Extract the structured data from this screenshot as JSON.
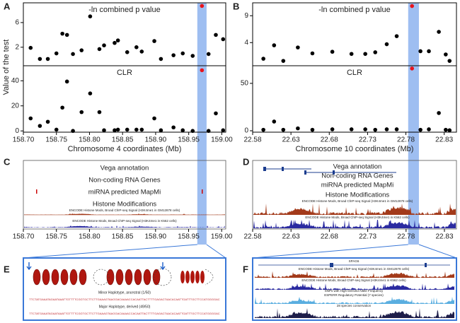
{
  "chart_data": [
    {
      "type": "scatter",
      "panel_label": "A",
      "title": "-ln combined p value",
      "y_label": "Value of the test",
      "x": [
        158.711,
        158.725,
        158.737,
        158.75,
        158.759,
        158.766,
        158.775,
        158.788,
        158.801,
        158.815,
        158.822,
        158.838,
        158.843,
        158.857,
        158.871,
        158.879,
        158.898,
        158.908,
        158.927,
        158.941,
        158.956,
        158.97,
        158.98,
        158.991,
        159.002
      ],
      "values": [
        1.9,
        0.1,
        0.1,
        1.0,
        4.2,
        4.0,
        0.9,
        1.5,
        7.0,
        1.7,
        2.3,
        2.7,
        3.1,
        1.2,
        2.0,
        1.3,
        3.0,
        0.1,
        0.7,
        1.0,
        0.6,
        8.7,
        0.9,
        4.0,
        3.3
      ],
      "color": "#000000",
      "highlight_index": 21,
      "highlight_color": "#e8141c",
      "band": [
        158.963,
        158.977
      ],
      "band_color": "#8db3ee",
      "xlim": [
        158.7,
        159.006
      ],
      "ylim": [
        -1,
        9.2
      ],
      "yticks": [
        2,
        6
      ]
    },
    {
      "type": "scatter",
      "title": "CLR",
      "x_label": "Chromosome 4 coordinates (Mb)",
      "x": [
        158.711,
        158.725,
        158.737,
        158.75,
        158.759,
        158.766,
        158.775,
        158.788,
        158.801,
        158.815,
        158.822,
        158.838,
        158.843,
        158.857,
        158.871,
        158.879,
        158.898,
        158.908,
        158.927,
        158.941,
        158.956,
        158.97,
        158.98,
        158.991,
        159.002
      ],
      "values": [
        10,
        4,
        7.3,
        1,
        18.6,
        39.4,
        0,
        15,
        29.9,
        15,
        0.5,
        0.5,
        1,
        1,
        1,
        1,
        10,
        0.5,
        2.8,
        0.5,
        0,
        48.4,
        0,
        14,
        0.5
      ],
      "color": "#000000",
      "highlight_index": 21,
      "highlight_color": "#e8141c",
      "band": [
        158.963,
        158.977
      ],
      "band_color": "#8db3ee",
      "xlim": [
        158.7,
        159.006
      ],
      "ylim": [
        -1,
        52
      ],
      "yticks": [
        0,
        20,
        40
      ],
      "xticks": [
        {
          "value": 158.7,
          "label": "158.70"
        },
        {
          "value": 158.75,
          "label": "158.75"
        },
        {
          "value": 158.8,
          "label": "158.80"
        },
        {
          "value": 158.85,
          "label": "158.85"
        },
        {
          "value": 158.9,
          "label": "158.90"
        },
        {
          "value": 158.95,
          "label": "158.95"
        },
        {
          "value": 159,
          "label": "159.00"
        }
      ]
    },
    {
      "type": "scatter",
      "panel_label": "B",
      "title": "-ln combined p value",
      "x": [
        22.594,
        22.608,
        22.62,
        22.639,
        22.658,
        22.684,
        22.709,
        22.727,
        22.74,
        22.755,
        22.768,
        22.788,
        22.799,
        22.81,
        22.823,
        22.832,
        22.837
      ],
      "values": [
        1.0,
        3.5,
        0.6,
        3.1,
        2.0,
        2.3,
        1.9,
        1.9,
        2.2,
        3.7,
        5.2,
        10.8,
        2.4,
        2.4,
        6.0,
        1.8,
        0.6
      ],
      "color": "#000000",
      "highlight_index": 11,
      "highlight_color": "#e8141c",
      "band": [
        22.783,
        22.797
      ],
      "band_color": "#8db3ee",
      "xlim": [
        22.58,
        22.846
      ],
      "ylim": [
        -0.3,
        11.4
      ],
      "yticks": [
        4,
        9
      ]
    },
    {
      "type": "scatter",
      "title": "CLR",
      "x_label": "Chromosome 10 coordinates (Mb)",
      "x": [
        22.594,
        22.608,
        22.62,
        22.639,
        22.658,
        22.684,
        22.709,
        22.727,
        22.74,
        22.755,
        22.768,
        22.788,
        22.799,
        22.81,
        22.823,
        22.832,
        22.837
      ],
      "values": [
        1,
        9.7,
        1,
        2.5,
        1,
        1.5,
        1.5,
        1.5,
        1,
        1.5,
        1.5,
        65.7,
        1,
        1.5,
        18.7,
        1,
        0.5
      ],
      "color": "#000000",
      "highlight_index": 11,
      "highlight_color": "#e8141c",
      "band": [
        22.783,
        22.797
      ],
      "band_color": "#8db3ee",
      "xlim": [
        22.58,
        22.846
      ],
      "ylim": [
        -1.5,
        68.6
      ],
      "yticks": [
        0,
        50
      ],
      "xticks": [
        22.58,
        22.63,
        22.68,
        22.73,
        22.78,
        22.83
      ]
    }
  ],
  "browser": {
    "C": {
      "label": "C",
      "tracks": [
        "Vega annotation",
        "Non-coding RNA Genes",
        "miRNA predicted MapMi",
        "Histone Modifications",
        "ENCODE Histone Mods, Broad ChIP-seq Signal (H3K4me1 in GM12878 cells)",
        "ENCODE Histone Mods, Broad ChIP-seq Signal (H3K4me1 in K562 cells)"
      ],
      "xticks": [
        "158.70",
        "158.75",
        "158.80",
        "158.85",
        "158.90",
        "158.95",
        "159.00"
      ]
    },
    "D": {
      "label": "D",
      "tracks": [
        "Vega annotation",
        "Non-coding RNA Genes",
        "miRNA predicted MapMi",
        "Histone Modifications",
        "ENCODE Histone Mods, Broad ChIP-seq Signal (H3K4me1 in GM12878 cells)",
        "ENCODE Histone Mods, Broad ChIP-seq Signal (H3K4me1 in K562 cells)"
      ],
      "xticks": [
        "22.58",
        "22.63",
        "22.68",
        "22.73",
        "22.78",
        "22.83"
      ]
    },
    "E": {
      "label": "E",
      "haplotypes": [
        "Minor Haplotype, ancestral (1/50)",
        "Major Haplotype, derived (49/50)"
      ],
      "sequences": [
        "TTCTATGAAATAGAATAAATTGTTTTCGGTGCTTCTTGAAAGTAAGGACAAAACCACAATTACTTTTGAGACTAACACAATTGATTTGCTTCCATGGGGAC",
        "TTCTATGAAATAGAATAAATTGTTTTCGGTGCTTCTTGAAAGTAAGGACAAAACCACAATTACTTTTGAGACTAACACAATTGATTTGCTTCCATGGGGAC"
      ]
    },
    "F": {
      "label": "F",
      "gene": "SPAG6",
      "tracks": [
        "ENCODE Histone Mods, Broad ChIP-seq Signal (H3K4me1 in GM12878 cells)",
        "ENCODE Histone Mods, Broad ChIP-seq Signal (H3K4me1 in K562 cells)",
        "SNPs with High Derived Allele Frequency",
        "ESPERR Regulatory Potential (7 species)",
        "28 species conservation"
      ]
    }
  }
}
